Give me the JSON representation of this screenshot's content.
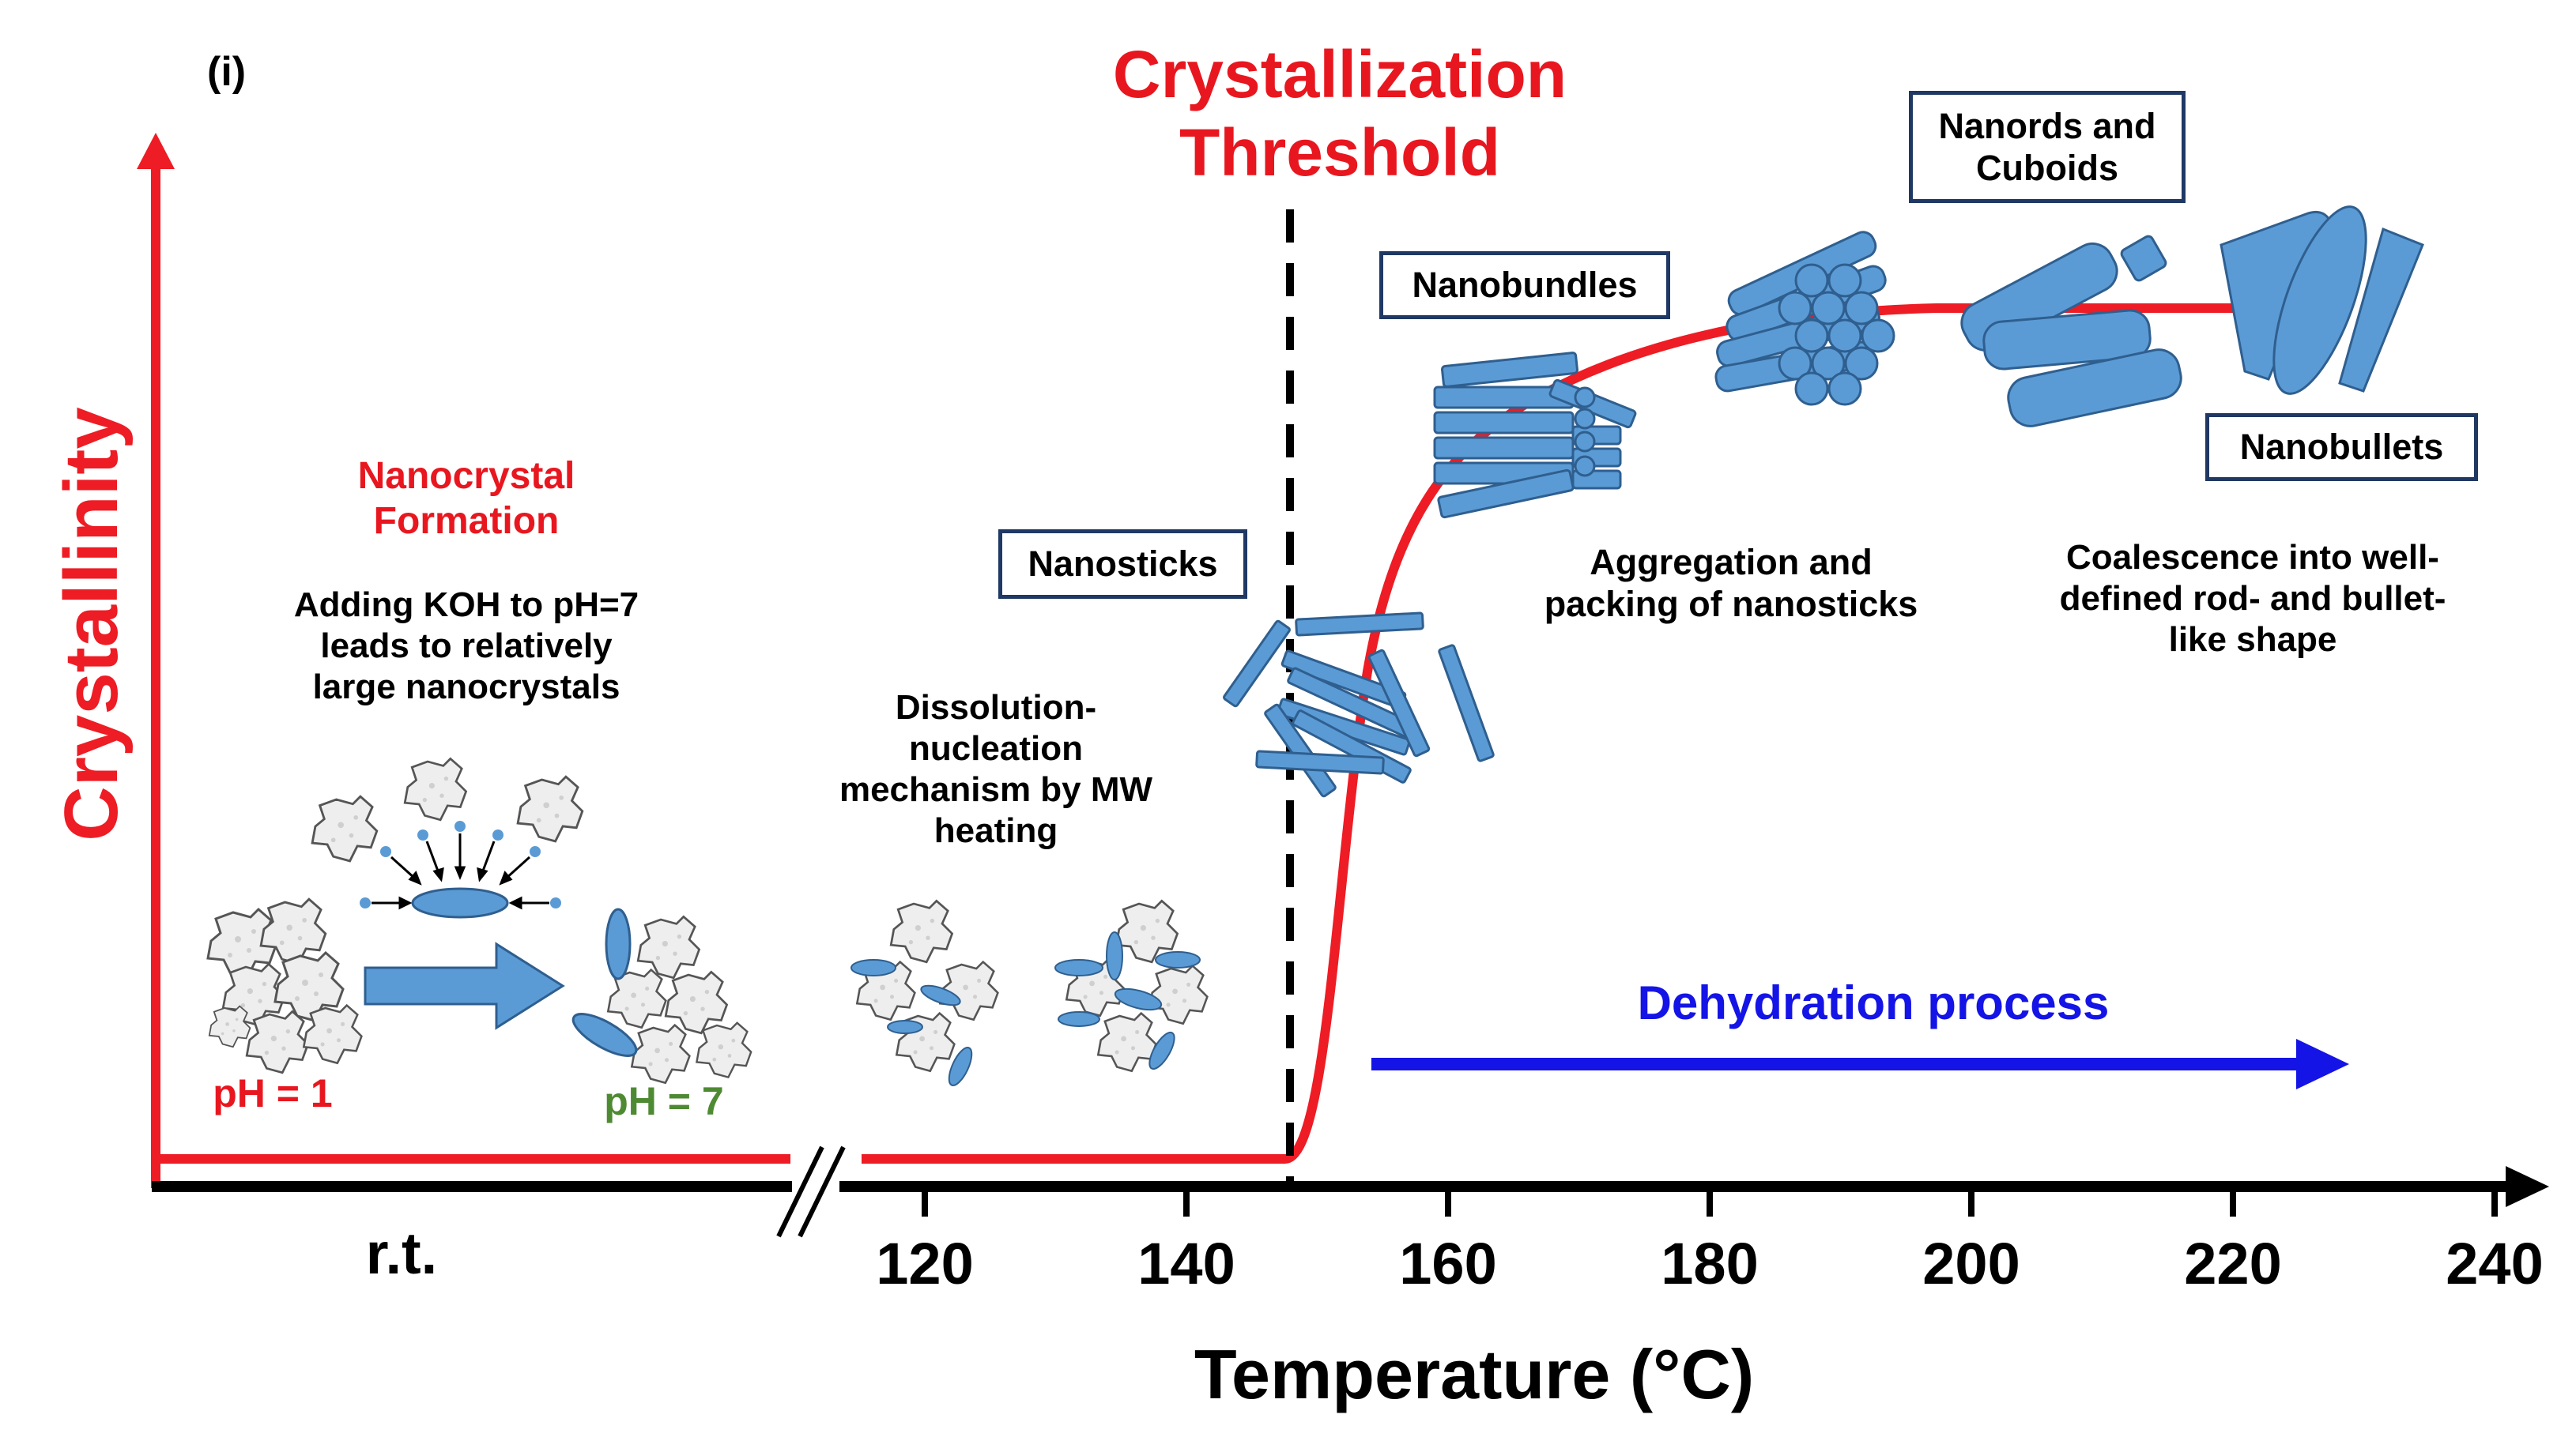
{
  "panel_label": "(i)",
  "threshold": {
    "line1": "Crystallization",
    "line2": "Threshold"
  },
  "y_axis_label": "Crystallinity",
  "x_axis_label": "Temperature (°C)",
  "x_ticks": [
    {
      "label": "r.t.",
      "value": null
    },
    {
      "label": "120",
      "value": 120
    },
    {
      "label": "140",
      "value": 140
    },
    {
      "label": "160",
      "value": 160
    },
    {
      "label": "180",
      "value": 180
    },
    {
      "label": "200",
      "value": 200
    },
    {
      "label": "220",
      "value": 220
    },
    {
      "label": "240",
      "value": 240
    }
  ],
  "stages": {
    "nanocrystal_title": {
      "line1": "Nanocrystal",
      "line2": "Formation"
    },
    "nanocrystal_desc": {
      "line1": "Adding KOH to pH=7",
      "line2": "leads to relatively",
      "line3": "large nanocrystals"
    },
    "ph_start": "pH = 1",
    "ph_end": "pH = 7",
    "dissolution": {
      "line1": "Dissolution-",
      "line2": "nucleation",
      "line3": "mechanism by MW",
      "line4": "heating"
    },
    "aggregation": {
      "line1": "Aggregation and",
      "line2": "packing of nanosticks"
    },
    "coalescence": {
      "line1": "Coalescence into well-",
      "line2": "defined rod- and bullet-",
      "line3": "like shape"
    },
    "dehydration": "Dehydration process"
  },
  "boxes": {
    "nanosticks": "Nanosticks",
    "nanobundles": "Nanobundles",
    "nanords": {
      "line1": "Nanords and",
      "line2": "Cuboids"
    },
    "nanobullets": "Nanobullets"
  },
  "colors": {
    "curve": "#ee1c24",
    "title_red": "#e8171f",
    "ph_green": "#4e8a32",
    "particle_blue": "#5b9bd5",
    "particle_stroke": "#2f5f8f",
    "box_border": "#1f3864",
    "dehydration_blue": "#1414e6",
    "axis": "#000000"
  },
  "icons": [
    "aggregate-particle-icon",
    "nanostick-icon",
    "nanobundle-icon",
    "nanorod-icon",
    "nanobullet-icon",
    "right-arrow-icon"
  ]
}
